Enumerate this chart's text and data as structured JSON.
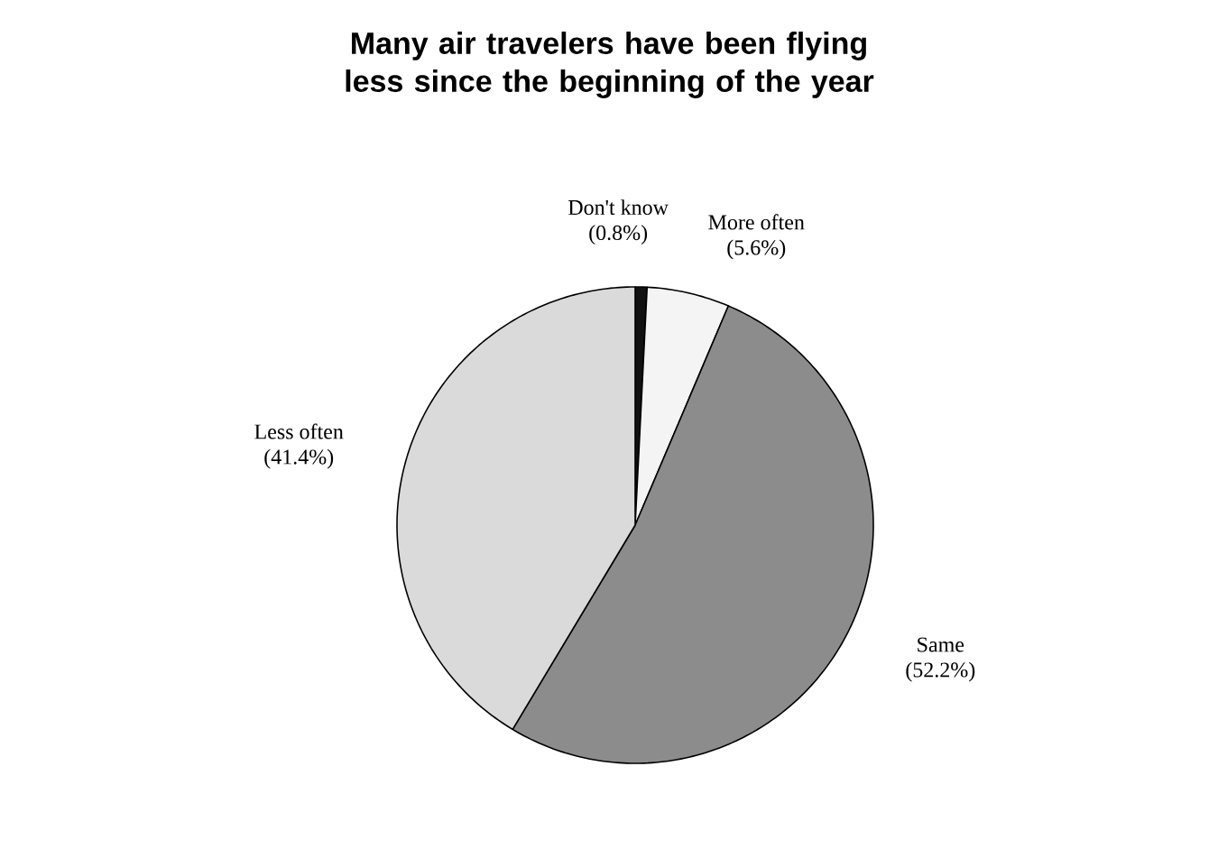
{
  "chart_data": {
    "type": "pie",
    "title": "Many air travelers have been flying less since the beginning of the year",
    "categories": [
      "Don't know",
      "More often",
      "Same",
      "Less often"
    ],
    "values": [
      0.8,
      5.6,
      52.2,
      41.4
    ],
    "value_labels": [
      "(0.8%)",
      "(5.6%)",
      "(52.2%)",
      "(41.4%)"
    ],
    "colors": [
      "#111111",
      "#f4f4f4",
      "#8c8c8c",
      "#dadada"
    ]
  }
}
